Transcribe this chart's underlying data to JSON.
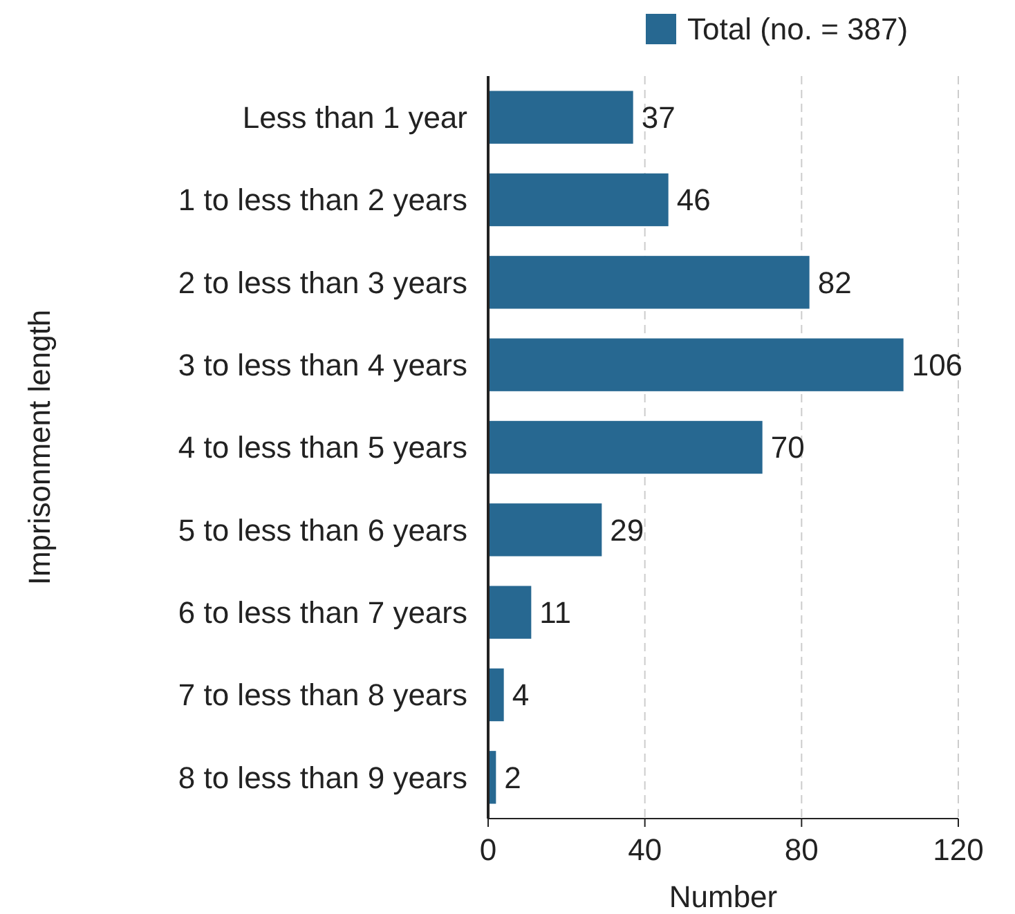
{
  "chart_data": {
    "type": "bar",
    "orientation": "horizontal",
    "xlabel": "Number",
    "ylabel": "Imprisonment length",
    "categories": [
      "Less than 1 year",
      "1 to less than 2 years",
      "2 to less than 3 years",
      "3 to less than 4 years",
      "4 to less than 5 years",
      "5 to less than 6 years",
      "6 to less than 7 years",
      "7 to less than 8 years",
      "8 to less than 9 years"
    ],
    "series": [
      {
        "name": "Total (no. = 387)",
        "color": "#276891",
        "values": [
          37,
          46,
          82,
          106,
          70,
          29,
          11,
          4,
          2
        ]
      }
    ],
    "xlim": [
      0,
      120
    ],
    "xticks": [
      0,
      40,
      80,
      120
    ],
    "grid": "x",
    "legend": "top right",
    "data_labels": true
  }
}
